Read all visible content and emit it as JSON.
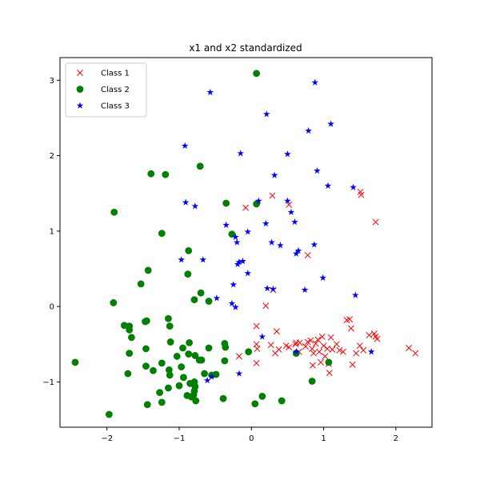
{
  "chart_data": {
    "type": "scatter",
    "title": "x1 and x2 standardized",
    "xlabel": "",
    "ylabel": "",
    "xlim": [
      -2.65,
      2.5
    ],
    "ylim": [
      -1.6,
      3.3
    ],
    "xticks": [
      -2,
      -1,
      0,
      1,
      2
    ],
    "yticks": [
      -1,
      0,
      1,
      2,
      3
    ],
    "grid": false,
    "legend_position": "upper left",
    "series": [
      {
        "name": "Class 1",
        "marker": "x",
        "color": "#ff0000",
        "points": [
          [
            0.29,
            1.47
          ],
          [
            -0.08,
            1.31
          ],
          [
            0.52,
            1.35
          ],
          [
            0.78,
            0.68
          ],
          [
            1.51,
            1.52
          ],
          [
            1.52,
            1.48
          ],
          [
            1.72,
            1.12
          ],
          [
            0.3,
            0.22
          ],
          [
            0.2,
            0.01
          ],
          [
            0.07,
            -0.26
          ],
          [
            0.07,
            -0.5
          ],
          [
            0.08,
            -0.56
          ],
          [
            0.07,
            -0.75
          ],
          [
            -0.17,
            -0.66
          ],
          [
            0.27,
            -0.51
          ],
          [
            0.35,
            -0.33
          ],
          [
            0.33,
            -0.62
          ],
          [
            0.38,
            -0.57
          ],
          [
            0.48,
            -0.52
          ],
          [
            0.52,
            -0.54
          ],
          [
            0.61,
            -0.5
          ],
          [
            0.67,
            -0.48
          ],
          [
            0.75,
            -0.53
          ],
          [
            0.78,
            -0.47
          ],
          [
            0.82,
            -0.45
          ],
          [
            0.84,
            -0.56
          ],
          [
            0.86,
            -0.62
          ],
          [
            0.89,
            -0.49
          ],
          [
            0.92,
            -0.44
          ],
          [
            0.94,
            -0.6
          ],
          [
            0.96,
            -0.74
          ],
          [
            0.98,
            -0.4
          ],
          [
            1.0,
            -0.52
          ],
          [
            1.02,
            -0.66
          ],
          [
            1.05,
            -0.56
          ],
          [
            1.07,
            -0.76
          ],
          [
            1.08,
            -0.88
          ],
          [
            1.1,
            -0.41
          ],
          [
            1.12,
            -0.57
          ],
          [
            1.18,
            -0.5
          ],
          [
            1.22,
            -0.58
          ],
          [
            1.27,
            -0.6
          ],
          [
            1.32,
            -0.18
          ],
          [
            1.36,
            -0.17
          ],
          [
            1.38,
            -0.29
          ],
          [
            1.4,
            -0.77
          ],
          [
            1.45,
            -0.62
          ],
          [
            1.5,
            -0.52
          ],
          [
            1.55,
            -0.58
          ],
          [
            1.63,
            -0.38
          ],
          [
            1.7,
            -0.36
          ],
          [
            1.72,
            -0.4
          ],
          [
            1.74,
            -0.43
          ],
          [
            2.18,
            -0.55
          ],
          [
            2.27,
            -0.62
          ],
          [
            0.85,
            -0.78
          ],
          [
            0.66,
            -0.6
          ],
          [
            0.62,
            -0.48
          ]
        ]
      },
      {
        "name": "Class 2",
        "marker": "o",
        "color": "#008000",
        "points": [
          [
            0.07,
            3.09
          ],
          [
            -1.39,
            1.76
          ],
          [
            -1.19,
            1.75
          ],
          [
            -0.71,
            1.86
          ],
          [
            -1.9,
            1.25
          ],
          [
            -1.24,
            0.97
          ],
          [
            -0.35,
            1.37
          ],
          [
            0.07,
            1.36
          ],
          [
            -0.27,
            0.96
          ],
          [
            -0.87,
            0.74
          ],
          [
            -1.43,
            0.48
          ],
          [
            -0.88,
            0.43
          ],
          [
            -1.53,
            0.3
          ],
          [
            -0.7,
            0.18
          ],
          [
            -0.59,
            0.07
          ],
          [
            -0.79,
            0.09
          ],
          [
            -1.91,
            0.05
          ],
          [
            -1.76,
            -0.25
          ],
          [
            -1.69,
            -0.26
          ],
          [
            -1.69,
            -0.31
          ],
          [
            -1.66,
            -0.41
          ],
          [
            -1.47,
            -0.2
          ],
          [
            -1.45,
            -0.19
          ],
          [
            -1.15,
            -0.16
          ],
          [
            -1.13,
            -0.26
          ],
          [
            -1.12,
            -0.47
          ],
          [
            -0.95,
            -0.55
          ],
          [
            -1.03,
            -0.66
          ],
          [
            -0.87,
            -0.63
          ],
          [
            -0.86,
            -0.48
          ],
          [
            -0.78,
            -0.65
          ],
          [
            -0.72,
            -0.71
          ],
          [
            -0.69,
            -0.71
          ],
          [
            -0.59,
            -0.55
          ],
          [
            -0.37,
            -0.49
          ],
          [
            -0.36,
            -0.54
          ],
          [
            -0.37,
            -0.72
          ],
          [
            -0.04,
            -0.6
          ],
          [
            -1.69,
            -0.62
          ],
          [
            -1.46,
            -0.56
          ],
          [
            -1.24,
            -0.75
          ],
          [
            -1.14,
            -0.84
          ],
          [
            -1.13,
            -0.91
          ],
          [
            -0.97,
            -0.8
          ],
          [
            -0.94,
            -0.94
          ],
          [
            -0.85,
            -1.02
          ],
          [
            -0.79,
            -1.0
          ],
          [
            -0.78,
            -1.06
          ],
          [
            -0.79,
            -1.12
          ],
          [
            -0.8,
            -1.17
          ],
          [
            -0.77,
            -1.25
          ],
          [
            -0.65,
            -0.89
          ],
          [
            -0.55,
            -0.91
          ],
          [
            -0.49,
            -0.9
          ],
          [
            -1.46,
            -0.79
          ],
          [
            -1.36,
            -0.85
          ],
          [
            -1.27,
            -1.14
          ],
          [
            -1.24,
            -1.27
          ],
          [
            -1.15,
            -1.08
          ],
          [
            -1.0,
            -1.05
          ],
          [
            -0.89,
            -1.18
          ],
          [
            -0.83,
            -1.2
          ],
          [
            -1.44,
            -1.3
          ],
          [
            -1.71,
            -0.89
          ],
          [
            -1.97,
            -1.43
          ],
          [
            -2.44,
            -0.74
          ],
          [
            0.05,
            -1.29
          ],
          [
            0.15,
            -1.19
          ],
          [
            0.42,
            -1.25
          ],
          [
            0.84,
            -0.99
          ],
          [
            1.07,
            -0.74
          ],
          [
            -0.39,
            -1.22
          ],
          [
            0.62,
            -0.62
          ]
        ]
      },
      {
        "name": "Class 3",
        "marker": "*",
        "color": "#0000ff",
        "points": [
          [
            0.88,
            2.97
          ],
          [
            -0.57,
            2.84
          ],
          [
            0.21,
            2.55
          ],
          [
            1.1,
            2.42
          ],
          [
            0.79,
            2.33
          ],
          [
            -0.92,
            2.13
          ],
          [
            -0.15,
            2.03
          ],
          [
            0.5,
            2.02
          ],
          [
            0.91,
            1.8
          ],
          [
            0.32,
            1.74
          ],
          [
            1.06,
            1.6
          ],
          [
            1.41,
            1.58
          ],
          [
            -0.91,
            1.38
          ],
          [
            -0.78,
            1.33
          ],
          [
            0.1,
            1.4
          ],
          [
            0.5,
            1.4
          ],
          [
            0.55,
            1.25
          ],
          [
            0.6,
            1.12
          ],
          [
            0.2,
            1.1
          ],
          [
            -0.35,
            1.08
          ],
          [
            -0.22,
            0.92
          ],
          [
            -0.05,
            0.99
          ],
          [
            -0.2,
            0.85
          ],
          [
            0.28,
            0.85
          ],
          [
            0.4,
            0.81
          ],
          [
            0.65,
            0.74
          ],
          [
            0.87,
            0.82
          ],
          [
            0.62,
            0.7
          ],
          [
            -0.97,
            0.62
          ],
          [
            -0.67,
            0.62
          ],
          [
            -0.19,
            0.56
          ],
          [
            -0.17,
            0.59
          ],
          [
            -0.12,
            0.6
          ],
          [
            -0.05,
            0.44
          ],
          [
            -0.25,
            0.29
          ],
          [
            0.99,
            0.38
          ],
          [
            0.22,
            0.24
          ],
          [
            0.3,
            0.23
          ],
          [
            0.74,
            0.22
          ],
          [
            -0.48,
            0.11
          ],
          [
            -0.27,
            0.04
          ],
          [
            -0.22,
            -0.01
          ],
          [
            1.44,
            0.15
          ],
          [
            0.15,
            -0.4
          ],
          [
            -0.17,
            -0.89
          ],
          [
            -0.55,
            -0.93
          ],
          [
            -0.61,
            -0.98
          ],
          [
            1.66,
            -0.6
          ],
          [
            0.62,
            -0.6
          ]
        ]
      }
    ]
  }
}
